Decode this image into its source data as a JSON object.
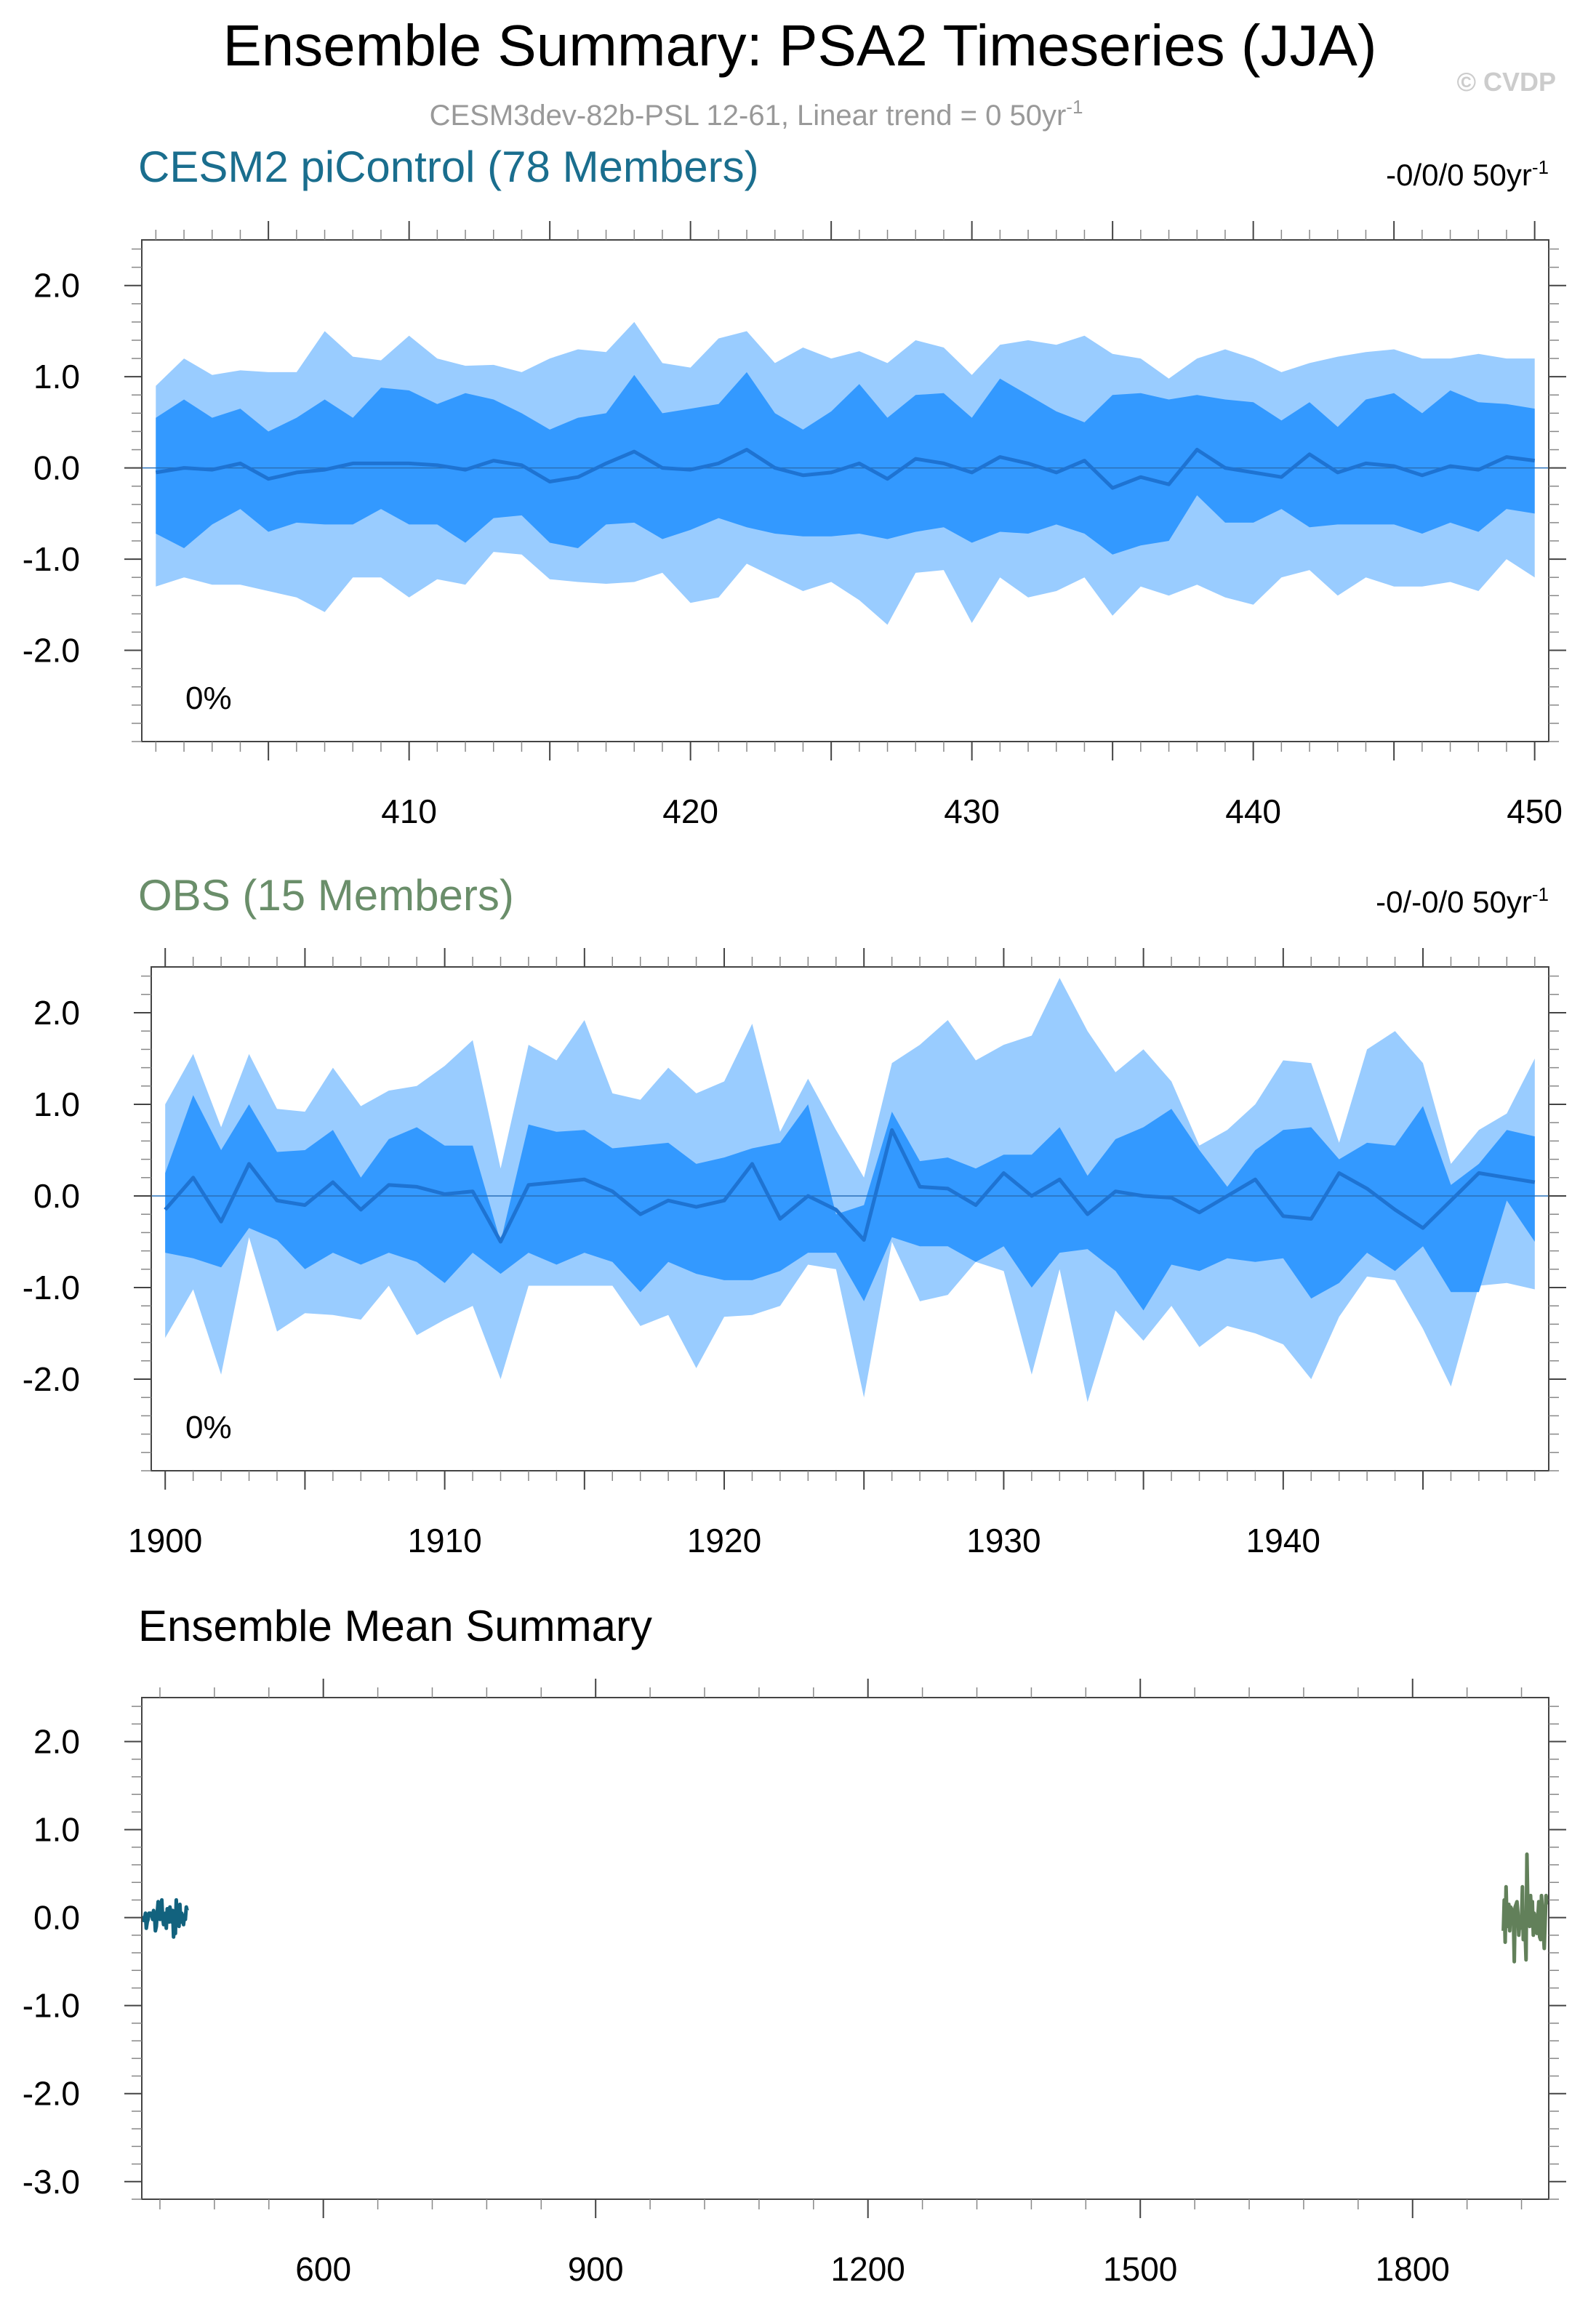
{
  "title": "Ensemble Summary: PSA2 Timeseries (JJA)",
  "watermark": "© CVDP",
  "subtitle": "CESM3dev-82b-PSL 12-61, Linear trend = 0 50yr",
  "subtitle_sup": "-1",
  "colors": {
    "band_outer": "#99ccff",
    "band_inner": "#3399ff",
    "mean_line": "#1e73d2",
    "cesm_title": "#1a6e8e",
    "obs_title": "#6a8e6a",
    "cesm_mean": "#12627e",
    "obs_mean": "#62805a",
    "frame": "#444444"
  },
  "chart_data": [
    {
      "type": "area",
      "name": "CESM2 piControl (78 Members)",
      "title": "CESM2 piControl (78 Members)",
      "trend_label": "-0/0/0 50yr",
      "trend_sup": "-1",
      "percent_label": "0%",
      "x": [
        401,
        402,
        403,
        404,
        405,
        406,
        407,
        408,
        409,
        410,
        411,
        412,
        413,
        414,
        415,
        416,
        417,
        418,
        419,
        420,
        421,
        422,
        423,
        424,
        425,
        426,
        427,
        428,
        429,
        430,
        431,
        432,
        433,
        434,
        435,
        436,
        437,
        438,
        439,
        440,
        441,
        442,
        443,
        444,
        445,
        446,
        447,
        448,
        449,
        450
      ],
      "p90": [
        0.9,
        1.2,
        1.02,
        1.07,
        1.05,
        1.05,
        1.5,
        1.22,
        1.18,
        1.45,
        1.2,
        1.12,
        1.13,
        1.05,
        1.2,
        1.3,
        1.27,
        1.6,
        1.15,
        1.1,
        1.42,
        1.5,
        1.15,
        1.32,
        1.2,
        1.28,
        1.15,
        1.4,
        1.32,
        1.02,
        1.35,
        1.4,
        1.35,
        1.45,
        1.25,
        1.2,
        0.98,
        1.2,
        1.3,
        1.2,
        1.05,
        1.15,
        1.22,
        1.27,
        1.3,
        1.2,
        1.2,
        1.25,
        1.2,
        1.2
      ],
      "p75": [
        0.55,
        0.75,
        0.55,
        0.65,
        0.4,
        0.55,
        0.75,
        0.55,
        0.88,
        0.85,
        0.7,
        0.82,
        0.75,
        0.6,
        0.42,
        0.55,
        0.6,
        1.02,
        0.6,
        0.65,
        0.7,
        1.05,
        0.6,
        0.42,
        0.62,
        0.92,
        0.55,
        0.8,
        0.82,
        0.55,
        0.98,
        0.8,
        0.62,
        0.5,
        0.8,
        0.82,
        0.75,
        0.8,
        0.75,
        0.72,
        0.52,
        0.72,
        0.45,
        0.75,
        0.82,
        0.6,
        0.85,
        0.72,
        0.7,
        0.65
      ],
      "mean": [
        -0.05,
        0.0,
        -0.02,
        0.05,
        -0.12,
        -0.05,
        -0.02,
        0.05,
        0.05,
        0.05,
        0.03,
        -0.02,
        0.08,
        0.03,
        -0.15,
        -0.1,
        0.05,
        0.18,
        0.0,
        -0.02,
        0.05,
        0.2,
        0.0,
        -0.08,
        -0.05,
        0.05,
        -0.12,
        0.1,
        0.05,
        -0.05,
        0.12,
        0.05,
        -0.05,
        0.08,
        -0.22,
        -0.1,
        -0.18,
        0.2,
        0.0,
        -0.05,
        -0.1,
        0.15,
        -0.05,
        0.05,
        0.02,
        -0.08,
        0.02,
        -0.02,
        0.12,
        0.08
      ],
      "p25": [
        -0.72,
        -0.88,
        -0.62,
        -0.45,
        -0.7,
        -0.6,
        -0.62,
        -0.62,
        -0.45,
        -0.62,
        -0.62,
        -0.82,
        -0.55,
        -0.52,
        -0.82,
        -0.88,
        -0.62,
        -0.6,
        -0.78,
        -0.68,
        -0.55,
        -0.65,
        -0.72,
        -0.75,
        -0.75,
        -0.72,
        -0.78,
        -0.7,
        -0.65,
        -0.82,
        -0.7,
        -0.72,
        -0.62,
        -0.72,
        -0.95,
        -0.85,
        -0.8,
        -0.3,
        -0.6,
        -0.6,
        -0.45,
        -0.65,
        -0.62,
        -0.62,
        -0.62,
        -0.72,
        -0.6,
        -0.7,
        -0.45,
        -0.5
      ],
      "p10": [
        -1.3,
        -1.2,
        -1.28,
        -1.28,
        -1.35,
        -1.42,
        -1.58,
        -1.2,
        -1.2,
        -1.42,
        -1.22,
        -1.28,
        -0.92,
        -0.95,
        -1.22,
        -1.25,
        -1.27,
        -1.25,
        -1.15,
        -1.48,
        -1.42,
        -1.05,
        -1.2,
        -1.35,
        -1.25,
        -1.45,
        -1.72,
        -1.15,
        -1.12,
        -1.7,
        -1.2,
        -1.42,
        -1.35,
        -1.2,
        -1.62,
        -1.3,
        -1.4,
        -1.28,
        -1.42,
        -1.5,
        -1.2,
        -1.12,
        -1.4,
        -1.2,
        -1.3,
        -1.3,
        -1.25,
        -1.35,
        -1.0,
        -1.2
      ],
      "xlim": [
        400.5,
        450.5
      ],
      "ylim": [
        -3.0,
        2.5
      ],
      "xticks": [
        410,
        420,
        430,
        440,
        450
      ],
      "yticks": [
        -2.0,
        -1.0,
        0.0,
        1.0,
        2.0
      ],
      "ytick_labels": [
        "-2.0",
        "-1.0",
        "0.0",
        "1.0",
        "2.0"
      ]
    },
    {
      "type": "area",
      "name": "OBS (15 Members)",
      "title": "OBS (15 Members)",
      "trend_label": "-0/-0/0 50yr",
      "trend_sup": "-1",
      "percent_label": "0%",
      "x": [
        1900,
        1901,
        1902,
        1903,
        1904,
        1905,
        1906,
        1907,
        1908,
        1909,
        1910,
        1911,
        1912,
        1913,
        1914,
        1915,
        1916,
        1917,
        1918,
        1919,
        1920,
        1921,
        1922,
        1923,
        1924,
        1925,
        1926,
        1927,
        1928,
        1929,
        1930,
        1931,
        1932,
        1933,
        1934,
        1935,
        1936,
        1937,
        1938,
        1939,
        1940,
        1941,
        1942,
        1943,
        1944,
        1945,
        1946,
        1947,
        1948,
        1949
      ],
      "p90": [
        1.0,
        1.55,
        0.75,
        1.55,
        0.95,
        0.92,
        1.4,
        0.98,
        1.15,
        1.2,
        1.42,
        1.7,
        0.3,
        1.65,
        1.48,
        1.92,
        1.12,
        1.05,
        1.4,
        1.12,
        1.25,
        1.88,
        0.7,
        1.28,
        0.72,
        0.2,
        1.45,
        1.65,
        1.92,
        1.48,
        1.65,
        1.75,
        2.38,
        1.8,
        1.35,
        1.6,
        1.25,
        0.55,
        0.72,
        1.0,
        1.48,
        1.45,
        0.58,
        1.6,
        1.8,
        1.45,
        0.35,
        0.72,
        0.9,
        1.5
      ],
      "p75": [
        0.25,
        1.1,
        0.5,
        1.0,
        0.48,
        0.5,
        0.72,
        0.2,
        0.62,
        0.75,
        0.55,
        0.55,
        -0.5,
        0.78,
        0.7,
        0.72,
        0.52,
        0.55,
        0.58,
        0.35,
        0.42,
        0.52,
        0.58,
        1.0,
        -0.2,
        -0.1,
        0.92,
        0.38,
        0.42,
        0.3,
        0.45,
        0.45,
        0.75,
        0.22,
        0.62,
        0.75,
        0.95,
        0.5,
        0.1,
        0.5,
        0.72,
        0.75,
        0.4,
        0.58,
        0.55,
        0.98,
        0.12,
        0.35,
        0.72,
        0.65
      ],
      "mean": [
        -0.15,
        0.2,
        -0.28,
        0.35,
        -0.05,
        -0.1,
        0.15,
        -0.15,
        0.12,
        0.1,
        0.02,
        0.05,
        -0.5,
        0.12,
        0.15,
        0.18,
        0.05,
        -0.2,
        -0.05,
        -0.12,
        -0.05,
        0.35,
        -0.25,
        0.0,
        -0.15,
        -0.48,
        0.72,
        0.1,
        0.08,
        -0.1,
        0.25,
        0.0,
        0.18,
        -0.2,
        0.05,
        0.0,
        -0.02,
        -0.18,
        0.0,
        0.18,
        -0.22,
        -0.25,
        0.25,
        0.08,
        -0.15,
        -0.35,
        -0.05,
        0.25,
        0.2,
        0.15
      ],
      "p25": [
        -0.62,
        -0.68,
        -0.78,
        -0.35,
        -0.48,
        -0.8,
        -0.62,
        -0.75,
        -0.62,
        -0.72,
        -0.95,
        -0.62,
        -0.85,
        -0.62,
        -0.75,
        -0.62,
        -0.72,
        -1.05,
        -0.72,
        -0.85,
        -0.92,
        -0.92,
        -0.82,
        -0.62,
        -0.62,
        -1.15,
        -0.45,
        -0.55,
        -0.55,
        -0.72,
        -0.55,
        -1.0,
        -0.62,
        -0.58,
        -0.82,
        -1.25,
        -0.75,
        -0.82,
        -0.68,
        -0.72,
        -0.68,
        -1.12,
        -0.95,
        -0.62,
        -0.82,
        -0.55,
        -1.05,
        -1.05,
        -0.05,
        -0.5
      ],
      "p10": [
        -1.55,
        -1.02,
        -1.95,
        -0.45,
        -1.48,
        -1.28,
        -1.3,
        -1.35,
        -0.98,
        -1.52,
        -1.35,
        -1.2,
        -2.0,
        -0.98,
        -0.98,
        -0.98,
        -0.98,
        -1.42,
        -1.3,
        -1.88,
        -1.32,
        -1.3,
        -1.2,
        -0.75,
        -0.8,
        -2.2,
        -0.5,
        -1.15,
        -1.08,
        -0.72,
        -0.82,
        -1.95,
        -0.8,
        -2.25,
        -1.25,
        -1.58,
        -1.2,
        -1.65,
        -1.42,
        -1.5,
        -1.62,
        -2.0,
        -1.32,
        -0.88,
        -0.92,
        -1.45,
        -2.08,
        -0.98,
        -0.95,
        -1.02
      ],
      "xlim": [
        1899.5,
        1949.5
      ],
      "ylim": [
        -3.0,
        2.5
      ],
      "xticks": [
        1900,
        1910,
        1920,
        1930,
        1940
      ],
      "yticks": [
        -2.0,
        -1.0,
        0.0,
        1.0,
        2.0
      ],
      "ytick_labels": [
        "-2.0",
        "-1.0",
        "0.0",
        "1.0",
        "2.0"
      ]
    },
    {
      "type": "line",
      "name": "Ensemble Mean Summary",
      "title": "Ensemble Mean Summary",
      "xlim": [
        400,
        1950
      ],
      "ylim": [
        -3.2,
        2.5
      ],
      "xticks": [
        600,
        900,
        1200,
        1500,
        1800
      ],
      "yticks": [
        -3.0,
        -2.0,
        -1.0,
        0.0,
        1.0,
        2.0
      ],
      "ytick_labels": [
        "-3.0",
        "-2.0",
        "-1.0",
        "0.0",
        "1.0",
        "2.0"
      ],
      "series": [
        {
          "name": "CESM2 piControl",
          "x": [
            401,
            402,
            403,
            404,
            405,
            406,
            407,
            408,
            409,
            410,
            411,
            412,
            413,
            414,
            415,
            416,
            417,
            418,
            419,
            420,
            421,
            422,
            423,
            424,
            425,
            426,
            427,
            428,
            429,
            430,
            431,
            432,
            433,
            434,
            435,
            436,
            437,
            438,
            439,
            440,
            441,
            442,
            443,
            444,
            445,
            446,
            447,
            448,
            449,
            450
          ],
          "values": [
            -0.05,
            0.0,
            -0.02,
            0.05,
            -0.12,
            -0.05,
            -0.02,
            0.05,
            0.05,
            0.05,
            0.03,
            -0.02,
            0.08,
            0.03,
            -0.15,
            -0.1,
            0.05,
            0.18,
            0.0,
            -0.02,
            0.05,
            0.2,
            0.0,
            -0.08,
            -0.05,
            0.05,
            -0.12,
            0.1,
            0.05,
            -0.05,
            0.12,
            0.05,
            -0.05,
            0.08,
            -0.22,
            -0.1,
            -0.18,
            0.2,
            0.0,
            -0.05,
            -0.1,
            0.15,
            -0.05,
            0.05,
            0.02,
            -0.08,
            0.02,
            -0.02,
            0.12,
            0.08
          ]
        },
        {
          "name": "OBS",
          "x": [
            1900,
            1901,
            1902,
            1903,
            1904,
            1905,
            1906,
            1907,
            1908,
            1909,
            1910,
            1911,
            1912,
            1913,
            1914,
            1915,
            1916,
            1917,
            1918,
            1919,
            1920,
            1921,
            1922,
            1923,
            1924,
            1925,
            1926,
            1927,
            1928,
            1929,
            1930,
            1931,
            1932,
            1933,
            1934,
            1935,
            1936,
            1937,
            1938,
            1939,
            1940,
            1941,
            1942,
            1943,
            1944,
            1945,
            1946,
            1947,
            1948,
            1949
          ],
          "values": [
            -0.15,
            0.2,
            -0.28,
            0.35,
            -0.05,
            -0.1,
            0.15,
            -0.15,
            0.12,
            0.1,
            0.02,
            0.05,
            -0.5,
            0.12,
            0.15,
            0.18,
            0.05,
            -0.2,
            -0.05,
            -0.12,
            -0.05,
            0.35,
            -0.25,
            0.0,
            -0.15,
            -0.48,
            0.72,
            0.1,
            0.08,
            -0.1,
            0.25,
            0.0,
            0.18,
            -0.2,
            0.05,
            0.0,
            -0.02,
            -0.18,
            0.0,
            0.18,
            -0.22,
            -0.25,
            0.25,
            0.08,
            -0.15,
            -0.35,
            -0.05,
            0.25,
            0.2,
            0.15
          ]
        }
      ]
    }
  ]
}
